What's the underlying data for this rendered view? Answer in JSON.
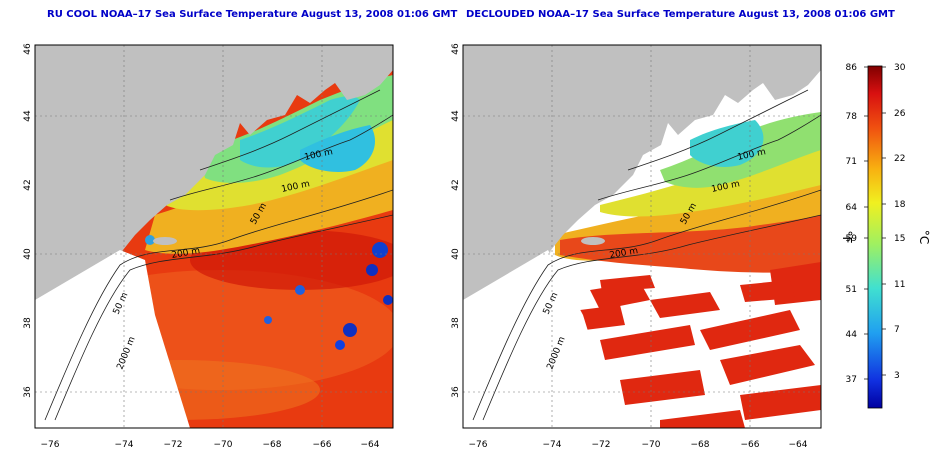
{
  "panels": [
    {
      "title": "RU COOL NOAA–17 Sea Surface Temperature August 13, 2008 01:06 GMT",
      "x_ticks": [
        "−76",
        "−74",
        "−72",
        "−70",
        "−68",
        "−66",
        "−64"
      ],
      "y_ticks": [
        "36",
        "38",
        "40",
        "42",
        "44",
        "46"
      ],
      "contour_labels": [
        "100 m",
        "100 m",
        "50 m",
        "200 m",
        "50 m",
        "2000 m"
      ],
      "clouds_masked": false
    },
    {
      "title": "DECLOUDED NOAA–17 Sea Surface Temperature August 13, 2008 01:06 GMT",
      "x_ticks": [
        "−76",
        "−74",
        "−72",
        "−70",
        "−68",
        "−66",
        "−64"
      ],
      "y_ticks": [
        "36",
        "38",
        "40",
        "42",
        "44",
        "46"
      ],
      "contour_labels": [
        "100 m",
        "100 m",
        "50 m",
        "200 m",
        "50 m",
        "2000 m"
      ],
      "clouds_masked": true
    }
  ],
  "colorbar": {
    "fahrenheit_ticks": [
      "86",
      "78",
      "71",
      "64",
      "59",
      "51",
      "44",
      "37"
    ],
    "celsius_ticks": [
      "30",
      "26",
      "22",
      "18",
      "15",
      "11",
      "7",
      "3"
    ],
    "fahrenheit_label": "°F",
    "celsius_label": "°C",
    "range_c": [
      0,
      30
    ]
  },
  "colors": {
    "title": "#0000c8",
    "land": "#c0c0c0",
    "no_data": "#ffffff",
    "warm": "#e02810",
    "cool": "#40d0d0",
    "cold": "#1030c8"
  }
}
